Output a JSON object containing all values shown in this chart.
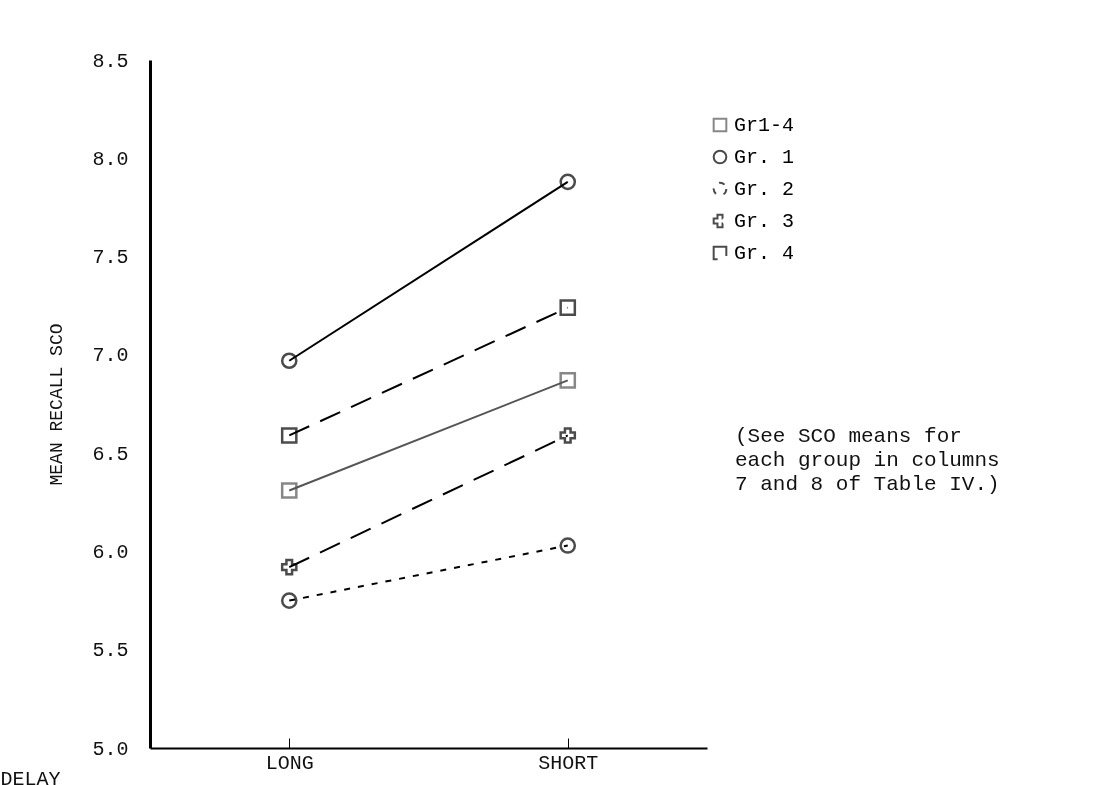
{
  "chart_data": {
    "type": "line",
    "xlabel": "DELAY",
    "ylabel": "MEAN RECALL SCO",
    "categories": [
      "LONG",
      "SHORT"
    ],
    "series": [
      {
        "name": "Gr1-4",
        "color": "#555555",
        "marker": "square",
        "line_style": "solid",
        "values": [
          6.31,
          6.87
        ]
      },
      {
        "name": "Gr. 1",
        "color": "#000000",
        "marker": "circle",
        "line_style": "solid",
        "values": [
          6.97,
          7.88
        ]
      },
      {
        "name": "Gr. 2",
        "color": "#000000",
        "marker": "circle",
        "line_style": "dotted",
        "values": [
          5.75,
          6.03
        ]
      },
      {
        "name": "Gr. 3",
        "color": "#000000",
        "marker": "cross",
        "line_style": "dashed",
        "values": [
          5.92,
          6.59
        ]
      },
      {
        "name": "Gr. 4",
        "color": "#000000",
        "marker": "square",
        "line_style": "dashed",
        "values": [
          6.59,
          7.24
        ]
      }
    ],
    "ylim": [
      5.0,
      8.5
    ],
    "yticks": [
      {
        "value": 5,
        "label": "5.0"
      },
      5.5,
      {
        "value": 6,
        "label": "6.0"
      },
      6.5,
      {
        "value": 7,
        "label": "7.0"
      },
      7.5,
      {
        "value": 8,
        "label": "8.0"
      },
      8.5
    ],
    "grid": false,
    "legend": "right",
    "annotations": [
      "(See SCO means for each group in columns 7 and 8 of Table IV.)"
    ]
  }
}
